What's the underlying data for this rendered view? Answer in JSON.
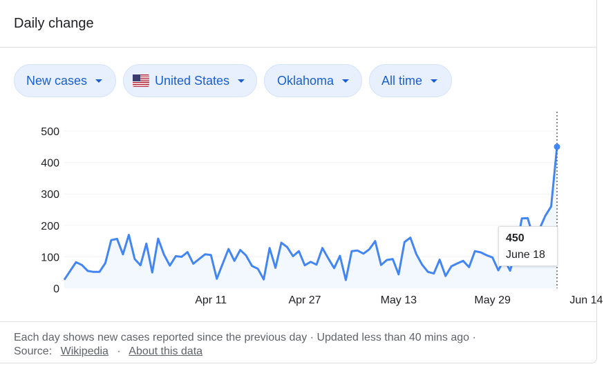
{
  "header": {
    "title": "Daily change"
  },
  "filters": [
    {
      "label": "New cases",
      "flag": false
    },
    {
      "label": "United States",
      "flag": true
    },
    {
      "label": "Oklahoma",
      "flag": false
    },
    {
      "label": "All time",
      "flag": false
    }
  ],
  "colors": {
    "line": "#4285f4",
    "chip_text": "#1a5fd0",
    "chip_bg": "#e8f0fe"
  },
  "tooltip": {
    "value": "450",
    "date": "June 18"
  },
  "footer": {
    "text": "Each day shows new cases reported since the previous day · Updated less than 40 mins ago ·",
    "source_label": "Source:",
    "source_link": "Wikipedia",
    "separator": "·",
    "about_link": "About this data"
  },
  "chart_data": {
    "type": "line",
    "title": "",
    "xlabel": "",
    "ylabel": "",
    "x_tick_labels": [
      "Apr 11",
      "Apr 27",
      "May 13",
      "May 29",
      "Jun 14"
    ],
    "y_tick_labels": [
      "0",
      "100",
      "200",
      "300",
      "400",
      "500"
    ],
    "ylim": [
      0,
      500
    ],
    "start_date": "2020-03-17",
    "series": [
      {
        "name": "",
        "values": [
          27,
          55,
          83,
          74,
          55,
          52,
          52,
          80,
          153,
          157,
          108,
          170,
          93,
          73,
          142,
          50,
          158,
          107,
          72,
          102,
          100,
          115,
          78,
          93,
          108,
          106,
          30,
          78,
          125,
          87,
          122,
          104,
          71,
          62,
          28,
          128,
          65,
          145,
          131,
          102,
          118,
          73,
          84,
          75,
          128,
          95,
          64,
          103,
          26,
          118,
          120,
          110,
          124,
          150,
          74,
          90,
          93,
          44,
          147,
          161,
          109,
          75,
          52,
          47,
          91,
          39,
          70,
          79,
          87,
          67,
          118,
          114,
          105,
          98,
          57,
          92,
          56,
          120,
          222,
          223,
          160,
          188,
          230,
          260,
          450
        ]
      }
    ]
  }
}
